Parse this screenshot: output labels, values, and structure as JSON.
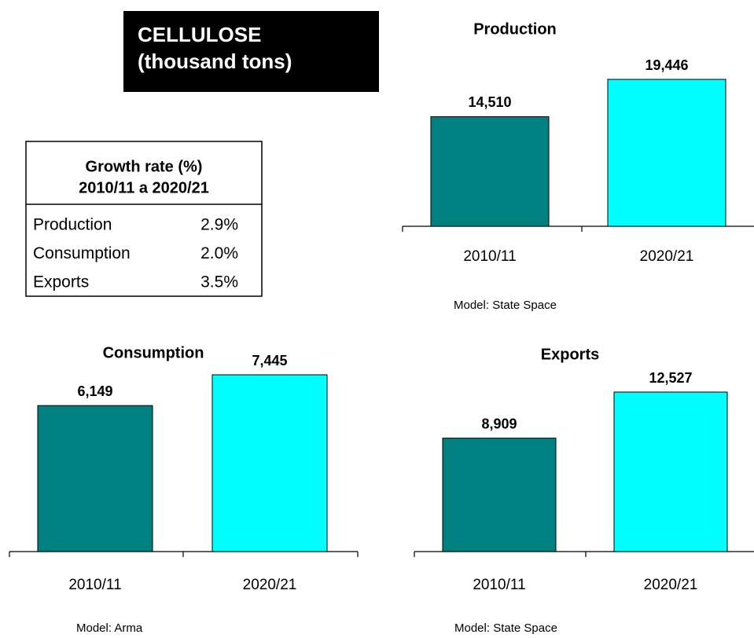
{
  "header": {
    "title": [
      "CELLULOSE",
      "(thousand tons)"
    ]
  },
  "table": {
    "title": [
      "Growth rate (%)",
      "2010/11 a 2020/21"
    ],
    "rows": [
      [
        "Production",
        "2.9%"
      ],
      [
        "Consumption",
        "2.0%"
      ],
      [
        "Exports",
        "3.5%"
      ]
    ]
  },
  "chart_data": [
    {
      "type": "bar",
      "title": "Production",
      "categories": [
        "2010/11",
        "2020/21"
      ],
      "values": [
        14510,
        19446
      ],
      "value_labels": [
        "14,510",
        "19,446"
      ],
      "colors": [
        "#008080",
        "#00ffff"
      ],
      "note": "Model: State Space"
    },
    {
      "type": "bar",
      "title": "Consumption",
      "categories": [
        "2010/11",
        "2020/21"
      ],
      "values": [
        6149,
        7445
      ],
      "value_labels": [
        "6,149",
        "7,445"
      ],
      "colors": [
        "#008080",
        "#00ffff"
      ],
      "note": "Model: Arma"
    },
    {
      "type": "bar",
      "title": "Exports",
      "categories": [
        "2010/11",
        "2020/21"
      ],
      "values": [
        8909,
        12527
      ],
      "value_labels": [
        "8,909",
        "12,527"
      ],
      "colors": [
        "#008080",
        "#00ffff"
      ],
      "note": "Model: State Space"
    }
  ]
}
